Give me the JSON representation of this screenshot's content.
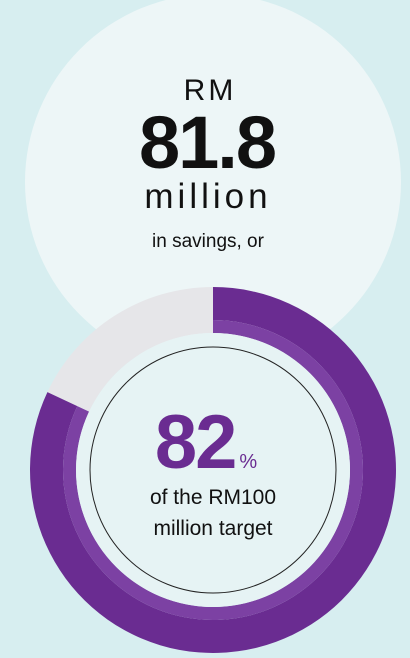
{
  "header": {
    "currency": "RM",
    "amount": 81.8,
    "unit": "million",
    "caption": "in savings, or"
  },
  "chart_data": {
    "type": "donut",
    "value": 82,
    "unit": "%",
    "ylim": [
      0,
      100
    ],
    "color": "#6a2c91",
    "inner_color": "#7c41a3",
    "remainder_color": "#e6e6e9",
    "caption_lines": [
      "of the RM100",
      "million target"
    ]
  }
}
